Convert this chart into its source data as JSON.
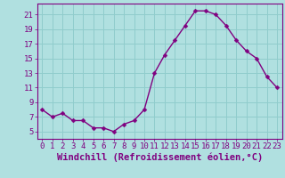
{
  "x": [
    0,
    1,
    2,
    3,
    4,
    5,
    6,
    7,
    8,
    9,
    10,
    11,
    12,
    13,
    14,
    15,
    16,
    17,
    18,
    19,
    20,
    21,
    22,
    23
  ],
  "y": [
    8,
    7,
    7.5,
    6.5,
    6.5,
    5.5,
    5.5,
    5,
    6,
    6.5,
    8,
    13,
    15.5,
    17.5,
    19.5,
    21.5,
    21.5,
    21,
    19.5,
    17.5,
    16,
    15,
    12.5,
    11
  ],
  "line_color": "#800080",
  "marker_color": "#800080",
  "bg_color": "#b0e0e0",
  "grid_color": "#90cccc",
  "xlabel": "Windchill (Refroidissement éolien,°C)",
  "ylim": [
    4,
    22.5
  ],
  "xlim": [
    -0.5,
    23.5
  ],
  "yticks": [
    5,
    7,
    9,
    11,
    13,
    15,
    17,
    19,
    21
  ],
  "xticks": [
    0,
    1,
    2,
    3,
    4,
    5,
    6,
    7,
    8,
    9,
    10,
    11,
    12,
    13,
    14,
    15,
    16,
    17,
    18,
    19,
    20,
    21,
    22,
    23
  ],
  "xtick_labels": [
    "0",
    "1",
    "2",
    "3",
    "4",
    "5",
    "6",
    "7",
    "8",
    "9",
    "10",
    "11",
    "12",
    "13",
    "14",
    "15",
    "16",
    "17",
    "18",
    "19",
    "20",
    "21",
    "22",
    "23"
  ],
  "marker_size": 2.5,
  "line_width": 1.0,
  "tick_font_size": 6.5,
  "xlabel_font_size": 7.5
}
